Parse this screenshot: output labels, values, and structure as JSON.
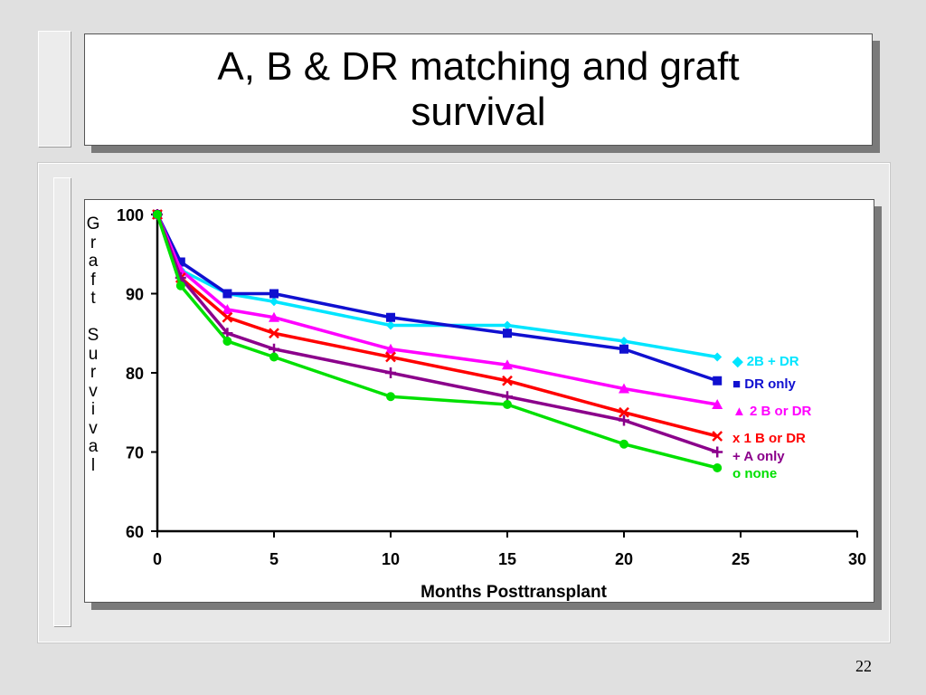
{
  "slide": {
    "title": "A, B & DR matching and graft survival",
    "page_number": "22"
  },
  "chart_data": {
    "type": "line",
    "title": "",
    "xlabel": "Months Posttransplant",
    "ylabel": "Graft Survival",
    "xlim": [
      0,
      30
    ],
    "ylim": [
      60,
      100
    ],
    "xticks": [
      "0",
      "5",
      "10",
      "15",
      "20",
      "25",
      "30"
    ],
    "yticks": [
      "60",
      "70",
      "80",
      "90",
      "100"
    ],
    "grid": false,
    "legend_position": "right (inline labels)",
    "series": [
      {
        "name": "2B + DR",
        "color": "#00e5ff",
        "marker": "diamond",
        "x": [
          0,
          1,
          3,
          5,
          10,
          15,
          20,
          24
        ],
        "y": [
          100,
          93,
          90,
          89,
          86,
          86,
          84,
          82
        ]
      },
      {
        "name": "DR only",
        "color": "#1010d0",
        "marker": "square",
        "x": [
          0,
          1,
          3,
          5,
          10,
          15,
          20,
          24
        ],
        "y": [
          100,
          94,
          90,
          90,
          87,
          85,
          83,
          79
        ]
      },
      {
        "name": "2 B or DR",
        "color": "#ff00ff",
        "marker": "triangle",
        "x": [
          0,
          1,
          3,
          5,
          10,
          15,
          20,
          24
        ],
        "y": [
          100,
          93,
          88,
          87,
          83,
          81,
          78,
          76
        ]
      },
      {
        "name": "1 B or DR",
        "color": "#ff0000",
        "marker": "x",
        "x": [
          0,
          1,
          3,
          5,
          10,
          15,
          20,
          24
        ],
        "y": [
          100,
          92,
          87,
          85,
          82,
          79,
          75,
          72
        ]
      },
      {
        "name": "A only",
        "color": "#8b008b",
        "marker": "plus",
        "x": [
          0,
          1,
          3,
          5,
          10,
          15,
          20,
          24
        ],
        "y": [
          100,
          92,
          85,
          83,
          80,
          77,
          74,
          70
        ]
      },
      {
        "name": "none",
        "color": "#00e000",
        "marker": "circle",
        "x": [
          0,
          1,
          3,
          5,
          10,
          15,
          20,
          24
        ],
        "y": [
          100,
          91,
          84,
          82,
          77,
          76,
          71,
          68
        ]
      }
    ],
    "legend_entries": [
      {
        "symbol": "◆",
        "text": "2B + DR",
        "color": "#00e5ff"
      },
      {
        "symbol": "■",
        "text": "DR only",
        "color": "#1010d0"
      },
      {
        "symbol": "▲",
        "text": "2 B or DR",
        "color": "#ff00ff"
      },
      {
        "symbol": "x",
        "text": "1 B or DR",
        "color": "#ff0000"
      },
      {
        "symbol": "+",
        "text": "A only",
        "color": "#8b008b"
      },
      {
        "symbol": "o",
        "text": "none",
        "color": "#00e000"
      }
    ]
  }
}
